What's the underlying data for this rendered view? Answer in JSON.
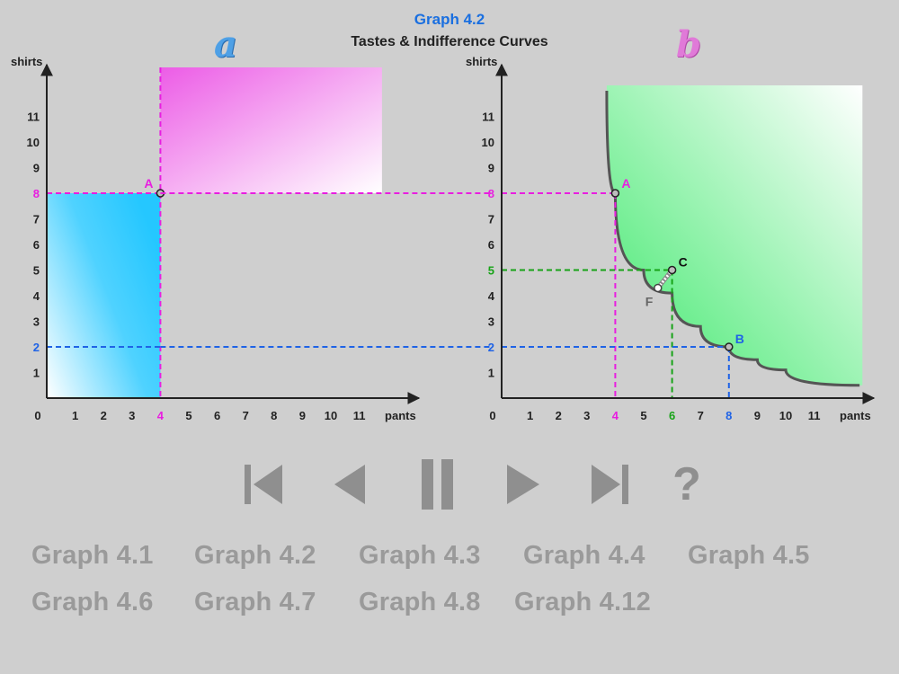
{
  "header": {
    "title": "Graph 4.2",
    "subtitle": "Tastes & Indifference Curves"
  },
  "panels": {
    "a": {
      "label": "a"
    },
    "b": {
      "label": "b"
    }
  },
  "axes": {
    "x_label": "pants",
    "y_label": "shirts",
    "x_ticks": [
      "0",
      "1",
      "2",
      "3",
      "4",
      "5",
      "6",
      "7",
      "8",
      "9",
      "10",
      "11"
    ],
    "y_ticks": [
      "1",
      "2",
      "3",
      "4",
      "5",
      "6",
      "7",
      "8",
      "9",
      "10",
      "11"
    ]
  },
  "colors": {
    "magenta": "#e81ee0",
    "blue": "#1f63e6",
    "green": "#17a317",
    "curve": "#555555",
    "cyan": "#2ec8ff",
    "lightgreen": "#4ef07a"
  },
  "chart_data": [
    {
      "type": "scatter",
      "panel": "a",
      "xlabel": "pants",
      "ylabel": "shirts",
      "xlim": [
        0,
        13
      ],
      "ylim": [
        0,
        12
      ],
      "points": [
        {
          "label": "A",
          "x": 4,
          "y": 8
        }
      ],
      "highlighted_ticks": {
        "x": [
          "4"
        ],
        "y": [
          "8",
          "2"
        ]
      }
    },
    {
      "type": "line",
      "panel": "b",
      "xlabel": "pants",
      "ylabel": "shirts",
      "xlim": [
        0,
        13
      ],
      "ylim": [
        0,
        12
      ],
      "indifference_curve": {
        "x": [
          3.7,
          4,
          5,
          6,
          7,
          8,
          9,
          10,
          12.6
        ],
        "y": [
          12,
          8,
          5,
          4.1,
          2.8,
          2,
          1.5,
          1.1,
          0.5
        ]
      },
      "points": [
        {
          "label": "A",
          "x": 4,
          "y": 8
        },
        {
          "label": "C",
          "x": 6,
          "y": 5
        },
        {
          "label": "F",
          "x": 5.5,
          "y": 4.3
        },
        {
          "label": "B",
          "x": 8,
          "y": 2
        }
      ],
      "highlighted_ticks": {
        "x": [
          "4",
          "6",
          "8"
        ],
        "y": [
          "8",
          "5",
          "2"
        ]
      }
    }
  ],
  "controls": {
    "first": "skip-to-start-icon",
    "prev": "previous-icon",
    "pause": "pause-icon",
    "next": "play-next-icon",
    "last": "skip-to-end-icon",
    "help": "?"
  },
  "nav": {
    "links": [
      "Graph 4.1",
      "Graph 4.2",
      "Graph 4.3",
      "Graph 4.4",
      "Graph 4.5",
      "Graph 4.6",
      "Graph 4.7",
      "Graph 4.8",
      "Graph 4.12"
    ]
  }
}
